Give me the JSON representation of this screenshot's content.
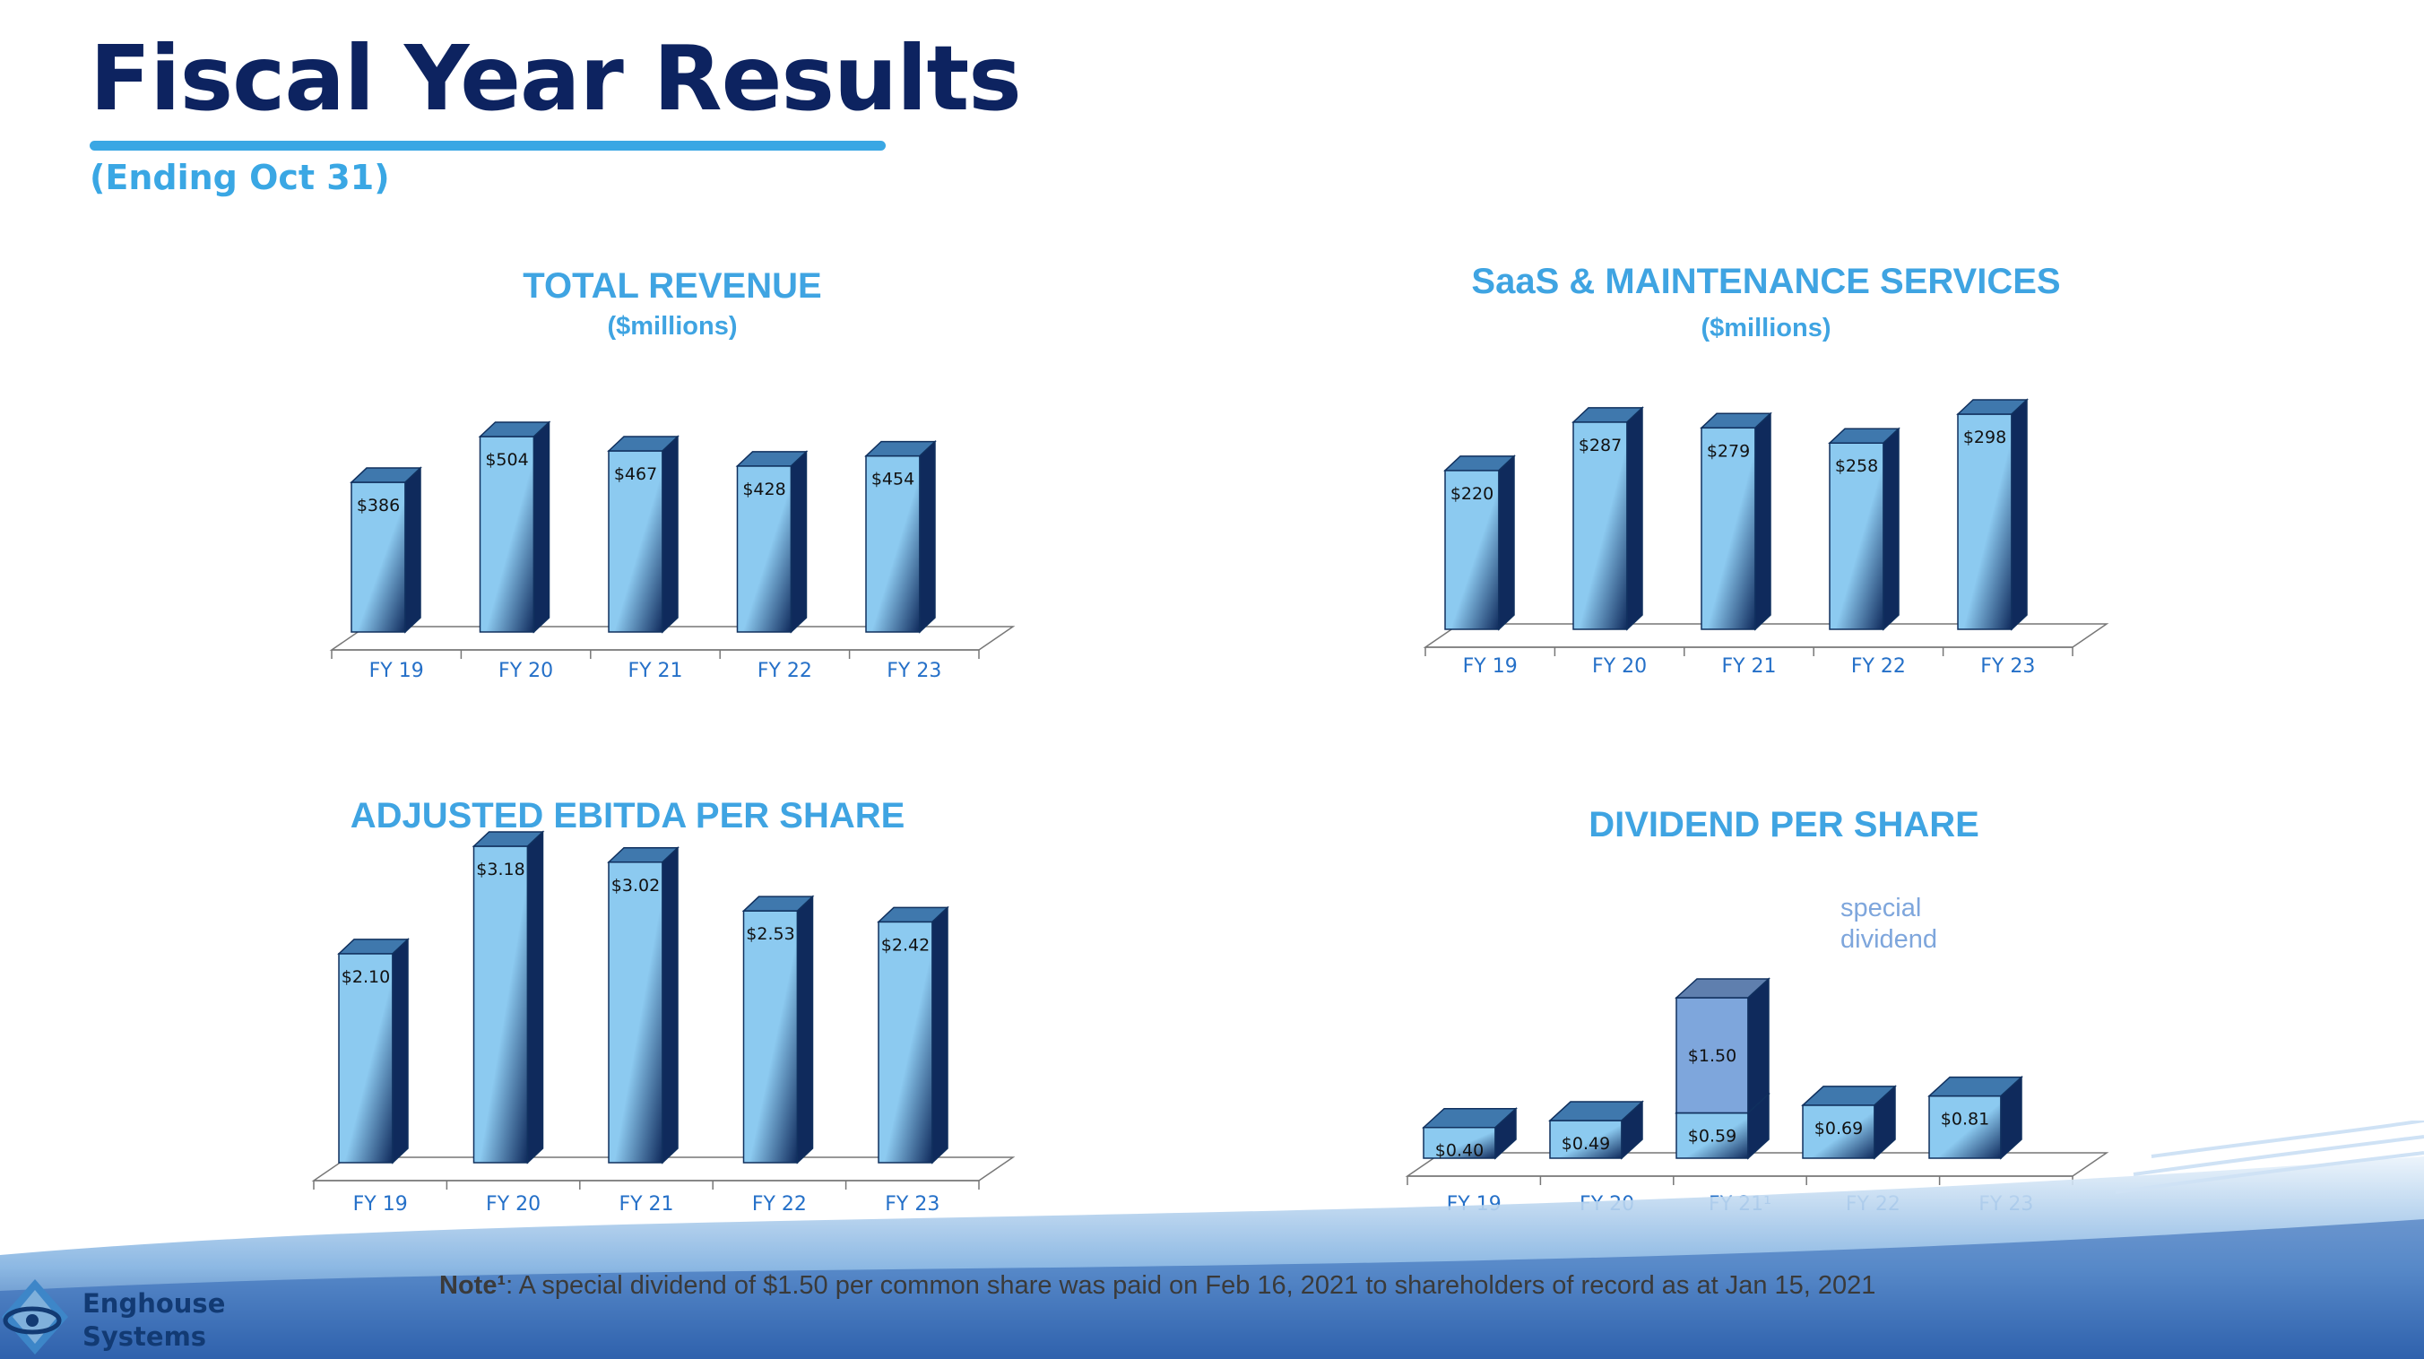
{
  "header": {
    "title": "Fiscal Year Results",
    "subtitle": "(Ending Oct 31)"
  },
  "colors": {
    "title": "#0d2360",
    "accent": "#3aa7e4",
    "bar_light": "#8ccaf0",
    "bar_dark": "#0f2a5c",
    "special_bar": "#7ea6dc",
    "tick_label": "#2570c8"
  },
  "chart_data": [
    {
      "type": "bar",
      "title": "TOTAL REVENUE",
      "subtitle": "($millions)",
      "categories": [
        "FY 19",
        "FY 20",
        "FY 21",
        "FY 22",
        "FY 23"
      ],
      "values": [
        386,
        504,
        467,
        428,
        454
      ],
      "data_labels": [
        "$386",
        "$504",
        "$467",
        "$428",
        "$454"
      ],
      "ylim": [
        0,
        504
      ],
      "grid": false
    },
    {
      "type": "bar",
      "title": "SaaS & MAINTENANCE SERVICES",
      "subtitle": "($millions)",
      "categories": [
        "FY 19",
        "FY 20",
        "FY 21",
        "FY 22",
        "FY 23"
      ],
      "values": [
        220,
        287,
        279,
        258,
        298
      ],
      "data_labels": [
        "$220",
        "$287",
        "$279",
        "$258",
        "$298"
      ],
      "ylim": [
        0,
        298
      ],
      "grid": false
    },
    {
      "type": "bar",
      "title": "ADJUSTED EBITDA PER SHARE",
      "categories": [
        "FY 19",
        "FY 20",
        "FY 21",
        "FY 22",
        "FY 23"
      ],
      "values": [
        2.1,
        3.18,
        3.02,
        2.53,
        2.42
      ],
      "data_labels": [
        "$2.10",
        "$3.18",
        "$3.02",
        "$2.53",
        "$2.42"
      ],
      "ylim": [
        0,
        3.18
      ],
      "grid": false
    },
    {
      "type": "bar",
      "stacked": true,
      "title": "DIVIDEND PER SHARE",
      "categories": [
        "FY 19",
        "FY 20",
        "FY 21¹",
        "FY 22",
        "FY 23"
      ],
      "series": [
        {
          "values": [
            0.4,
            0.49,
            0.59,
            0.69,
            0.81
          ],
          "data_labels": [
            "$0.40",
            "$0.49",
            "$0.59",
            "$0.69",
            "$0.81"
          ]
        },
        {
          "name": "special dividend",
          "values": [
            0,
            0,
            1.5,
            0,
            0
          ],
          "data_labels": [
            "",
            "",
            "$1.50",
            "",
            ""
          ]
        }
      ],
      "annotation": "special dividend",
      "ylim": [
        0,
        2.09
      ],
      "grid": false
    }
  ],
  "footer": {
    "logo_line1": "Enghouse",
    "logo_line2": "Systems",
    "note_label": "Note¹",
    "note_text": ": A special dividend of $1.50 per common share was paid on Feb 16, 2021 to shareholders of record as at Jan 15, 2021"
  }
}
